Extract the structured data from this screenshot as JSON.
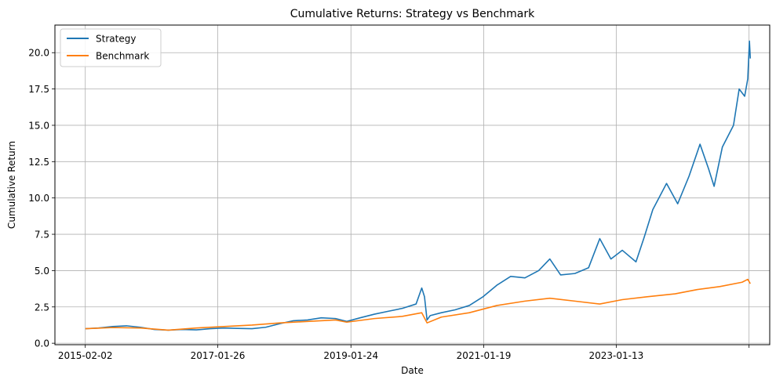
{
  "chart_data": {
    "type": "line",
    "title": "Cumulative Returns: Strategy vs Benchmark",
    "xlabel": "Date",
    "ylabel": "Cumulative Return",
    "x_tick_labels": [
      "2015-02-02",
      "2017-01-26",
      "2019-01-24",
      "2021-01-19",
      "2023-01-13",
      ""
    ],
    "x_tick_dates": [
      "2015-02-02",
      "2017-01-26",
      "2019-01-24",
      "2021-01-19",
      "2023-01-13",
      "2025-01-08"
    ],
    "xlim": [
      "2014-08-20",
      "2025-05-01"
    ],
    "y_ticks": [
      0.0,
      2.5,
      5.0,
      7.5,
      10.0,
      12.5,
      15.0,
      17.5,
      20.0
    ],
    "y_tick_labels": [
      "0.0",
      "2.5",
      "5.0",
      "7.5",
      "10.0",
      "12.5",
      "15.0",
      "17.5",
      "20.0"
    ],
    "ylim": [
      -0.1,
      21.9
    ],
    "grid": true,
    "legend_position": "top-left",
    "series": [
      {
        "name": "Strategy",
        "color": "#1f77b4",
        "points": [
          [
            "2015-02-02",
            1.0
          ],
          [
            "2015-04-15",
            1.05
          ],
          [
            "2015-07-01",
            1.15
          ],
          [
            "2015-09-15",
            1.2
          ],
          [
            "2015-11-30",
            1.1
          ],
          [
            "2016-02-15",
            0.95
          ],
          [
            "2016-05-01",
            0.9
          ],
          [
            "2016-07-15",
            0.95
          ],
          [
            "2016-10-01",
            0.92
          ],
          [
            "2016-12-15",
            1.0
          ],
          [
            "2017-03-01",
            1.05
          ],
          [
            "2017-05-15",
            1.02
          ],
          [
            "2017-08-01",
            1.0
          ],
          [
            "2017-10-15",
            1.1
          ],
          [
            "2018-01-01",
            1.35
          ],
          [
            "2018-03-15",
            1.55
          ],
          [
            "2018-06-01",
            1.6
          ],
          [
            "2018-08-15",
            1.75
          ],
          [
            "2018-11-01",
            1.7
          ],
          [
            "2019-01-01",
            1.5
          ],
          [
            "2019-03-15",
            1.75
          ],
          [
            "2019-06-01",
            2.0
          ],
          [
            "2019-08-15",
            2.2
          ],
          [
            "2019-11-01",
            2.4
          ],
          [
            "2020-01-15",
            2.7
          ],
          [
            "2020-02-15",
            3.8
          ],
          [
            "2020-03-01",
            3.2
          ],
          [
            "2020-03-15",
            1.6
          ],
          [
            "2020-04-01",
            1.9
          ],
          [
            "2020-06-01",
            2.1
          ],
          [
            "2020-08-15",
            2.3
          ],
          [
            "2020-11-01",
            2.6
          ],
          [
            "2021-01-15",
            3.2
          ],
          [
            "2021-04-01",
            4.0
          ],
          [
            "2021-06-15",
            4.6
          ],
          [
            "2021-09-01",
            4.5
          ],
          [
            "2021-11-15",
            5.0
          ],
          [
            "2022-01-15",
            5.8
          ],
          [
            "2022-03-15",
            4.7
          ],
          [
            "2022-06-01",
            4.8
          ],
          [
            "2022-08-15",
            5.2
          ],
          [
            "2022-10-15",
            7.2
          ],
          [
            "2022-12-15",
            5.8
          ],
          [
            "2023-02-15",
            6.4
          ],
          [
            "2023-05-01",
            5.6
          ],
          [
            "2023-06-15",
            7.3
          ],
          [
            "2023-08-01",
            9.2
          ],
          [
            "2023-10-15",
            11.0
          ],
          [
            "2023-12-15",
            9.6
          ],
          [
            "2024-02-15",
            11.5
          ],
          [
            "2024-04-15",
            13.7
          ],
          [
            "2024-06-01",
            12.0
          ],
          [
            "2024-07-01",
            10.8
          ],
          [
            "2024-08-15",
            13.5
          ],
          [
            "2024-10-15",
            15.0
          ],
          [
            "2024-11-15",
            17.5
          ],
          [
            "2024-12-15",
            17.0
          ],
          [
            "2025-01-01",
            18.2
          ],
          [
            "2025-01-10",
            20.8
          ],
          [
            "2025-01-15",
            19.6
          ]
        ]
      },
      {
        "name": "Benchmark",
        "color": "#ff7f0e",
        "points": [
          [
            "2015-02-02",
            1.0
          ],
          [
            "2015-07-01",
            1.08
          ],
          [
            "2015-12-01",
            1.05
          ],
          [
            "2016-05-01",
            0.9
          ],
          [
            "2016-10-01",
            1.05
          ],
          [
            "2017-03-01",
            1.15
          ],
          [
            "2017-08-01",
            1.25
          ],
          [
            "2018-01-01",
            1.4
          ],
          [
            "2018-06-01",
            1.5
          ],
          [
            "2018-11-01",
            1.6
          ],
          [
            "2019-01-01",
            1.45
          ],
          [
            "2019-06-01",
            1.7
          ],
          [
            "2019-11-01",
            1.85
          ],
          [
            "2020-02-15",
            2.1
          ],
          [
            "2020-03-15",
            1.4
          ],
          [
            "2020-06-01",
            1.8
          ],
          [
            "2020-11-01",
            2.1
          ],
          [
            "2021-04-01",
            2.6
          ],
          [
            "2021-09-01",
            2.9
          ],
          [
            "2022-01-15",
            3.1
          ],
          [
            "2022-06-01",
            2.9
          ],
          [
            "2022-10-15",
            2.7
          ],
          [
            "2023-02-15",
            3.0
          ],
          [
            "2023-07-01",
            3.2
          ],
          [
            "2023-12-01",
            3.4
          ],
          [
            "2024-04-01",
            3.7
          ],
          [
            "2024-08-01",
            3.9
          ],
          [
            "2024-12-01",
            4.2
          ],
          [
            "2025-01-01",
            4.4
          ],
          [
            "2025-01-15",
            4.1
          ]
        ]
      }
    ]
  }
}
